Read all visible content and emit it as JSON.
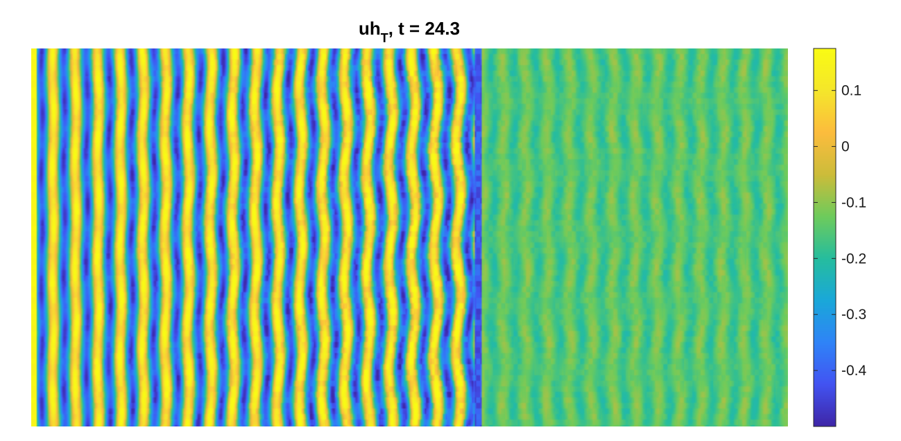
{
  "chart_data": {
    "type": "heatmap",
    "title": {
      "prefix": "uh",
      "subscript": "T",
      "suffix": ", t = 24.3"
    },
    "xlabel": "",
    "ylabel": "",
    "grid": false,
    "colormap": "parula",
    "colormap_stops": [
      "#3e26a8",
      "#4254f2",
      "#2f84f7",
      "#1aa8d9",
      "#26bd9e",
      "#6ecb5c",
      "#ccbc3a",
      "#fcbc3d",
      "#f5e62b",
      "#f9fb14"
    ],
    "colorbar": {
      "location": "right",
      "range": [
        -0.5,
        0.175
      ],
      "ticks": [
        0.1,
        0,
        -0.1,
        -0.2,
        -0.3,
        -0.4
      ],
      "tick_labels": [
        "0.1",
        "0",
        "-0.1",
        "-0.2",
        "-0.3",
        "-0.4"
      ]
    },
    "field": {
      "interface_x_fraction": 0.595,
      "left_region": {
        "mean": -0.15,
        "amplitude": 0.3,
        "stripe_count": 20,
        "edge_value": 0.16
      },
      "right_region": {
        "mean": -0.15,
        "amplitude": 0.05,
        "stripe_count": 14
      }
    }
  }
}
